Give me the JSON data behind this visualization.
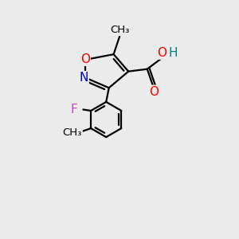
{
  "bg_color": "#ebebeb",
  "bond_color": "#000000",
  "bond_width": 1.6,
  "atom_colors": {
    "O": "#ff0000",
    "N": "#0000cc",
    "F": "#cc44cc",
    "O_cooh": "#ff0000",
    "H": "#008080"
  },
  "font_size": 11,
  "font_size_small": 10,
  "font_size_methyl": 9.5
}
